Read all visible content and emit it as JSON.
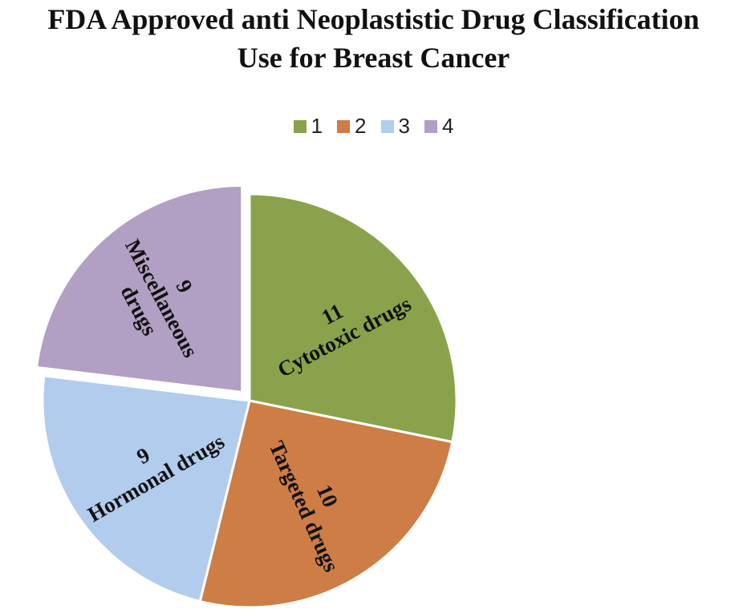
{
  "chart_data": {
    "type": "pie",
    "title": "FDA Approved anti Neoplastistic Drug Classification Use for Breast Cancer",
    "title_lines": [
      "FDA Approved anti Neoplastistic Drug Classification",
      "Use for Breast Cancer"
    ],
    "legend_position": "top",
    "legend": [
      "1",
      "2",
      "3",
      "4"
    ],
    "slices": [
      {
        "legend": "1",
        "value": 11,
        "label": "Cytotoxic drugs",
        "color": "#8aa24b",
        "exploded": false
      },
      {
        "legend": "2",
        "value": 10,
        "label": "Targeted drugs",
        "color": "#cd7d45",
        "exploded": false
      },
      {
        "legend": "3",
        "value": 9,
        "label": "Hormonal drugs",
        "color": "#b2ccee",
        "exploded": false
      },
      {
        "legend": "4",
        "value": 9,
        "label": "Miscellaneous drugs",
        "color": "#b29fc4",
        "exploded": true
      }
    ]
  }
}
